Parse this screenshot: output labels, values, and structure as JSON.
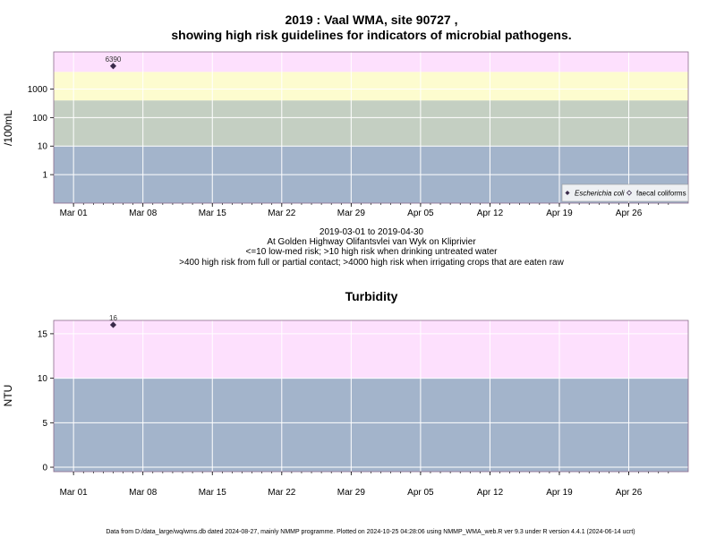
{
  "chart_data": [
    {
      "type": "scatter",
      "title": "2019 : Vaal WMA, site 90727 ,",
      "title2": "showing high risk guidelines for indicators of microbial pathogens.",
      "ylabel": "/100mL",
      "yscale": "log",
      "ylim": [
        0.1,
        20000
      ],
      "yticks": [
        1,
        10,
        100,
        1000
      ],
      "ytick_labels": [
        "1",
        "10",
        "100",
        "1000"
      ],
      "xlim": [
        "2019-02-27",
        "2019-05-02"
      ],
      "xticks": [
        "2019-03-01",
        "2019-03-08",
        "2019-03-15",
        "2019-03-22",
        "2019-03-29",
        "2019-04-05",
        "2019-04-12",
        "2019-04-19",
        "2019-04-26"
      ],
      "xtick_labels": [
        "Mar 01",
        "Mar 08",
        "Mar 15",
        "Mar 22",
        "Mar 29",
        "Apr 05",
        "Apr 12",
        "Apr 19",
        "Apr 26"
      ],
      "bands": [
        {
          "from": 0.1,
          "to": 10,
          "color": "#a3b4cb"
        },
        {
          "from": 10,
          "to": 400,
          "color": "#c4cfc2"
        },
        {
          "from": 400,
          "to": 4000,
          "color": "#fdfccf"
        },
        {
          "from": 4000,
          "to": 20000,
          "color": "#fde0fd"
        }
      ],
      "series": [
        {
          "name": "Escherichia coli",
          "marker": "filled-diamond",
          "color": "#3a2a4a",
          "points": [
            {
              "x": "2019-03-05",
              "y": 6390,
              "label": "6390"
            }
          ]
        },
        {
          "name": "faecal coliforms",
          "marker": "open-diamond",
          "color": "#3a2a4a",
          "points": []
        }
      ],
      "legend": "bottom-right",
      "grid": true
    },
    {
      "type": "scatter",
      "title": "Turbidity",
      "ylabel": "NTU",
      "ylim": [
        -0.5,
        16.5
      ],
      "yticks": [
        0,
        5,
        10,
        15
      ],
      "ytick_labels": [
        "0",
        "5",
        "10",
        "15"
      ],
      "xlim": [
        "2019-02-27",
        "2019-05-02"
      ],
      "xticks": [
        "2019-03-01",
        "2019-03-08",
        "2019-03-15",
        "2019-03-22",
        "2019-03-29",
        "2019-04-05",
        "2019-04-12",
        "2019-04-19",
        "2019-04-26"
      ],
      "xtick_labels": [
        "Mar 01",
        "Mar 08",
        "Mar 15",
        "Mar 22",
        "Mar 29",
        "Apr 05",
        "Apr 12",
        "Apr 19",
        "Apr 26"
      ],
      "bands": [
        {
          "from": -0.5,
          "to": 10,
          "color": "#a3b4cb"
        },
        {
          "from": 10,
          "to": 16.5,
          "color": "#fde0fd"
        }
      ],
      "series": [
        {
          "name": "",
          "marker": "filled-diamond",
          "color": "#3a2a4a",
          "points": [
            {
              "x": "2019-03-05",
              "y": 16,
              "label": "16"
            }
          ]
        }
      ],
      "grid": true
    }
  ],
  "caption": {
    "line1": "2019-03-01 to 2019-04-30",
    "line2": "At Golden Highway Olifantsvlei van Wyk on Kliprivier",
    "line3": "<=10 low-med risk; >10 high risk when drinking untreated water",
    "line4": ">400 high risk from full or partial contact; >4000 high risk when irrigating crops that are eaten raw"
  },
  "footer": "Data from D:/data_large/wq/wms.db dated 2024-08-27, mainly NMMP programme. Plotted on 2024-10-25 04:28:06 using NMMP_WMA_web.R ver 9.3 under R version 4.4.1 (2024-06-14 ucrt)"
}
